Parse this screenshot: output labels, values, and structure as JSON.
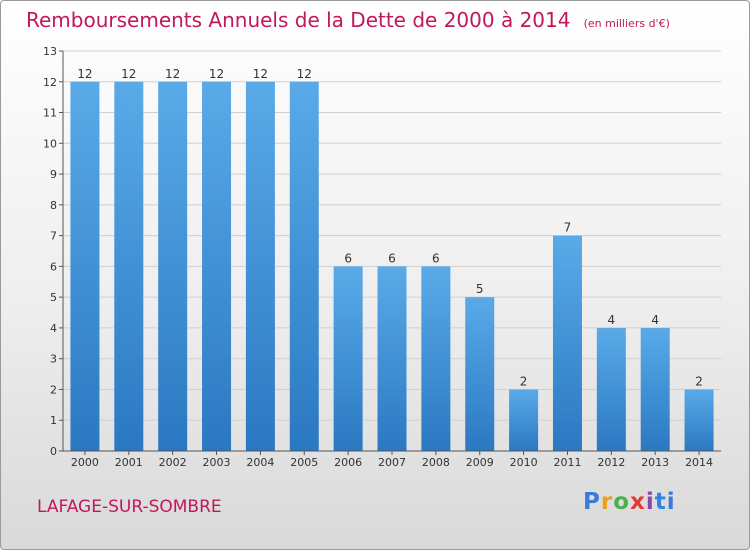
{
  "title": "Remboursements Annuels de la Dette de 2000 à 2014",
  "unit_note": "(en milliers d'€)",
  "city": "LAFAGE-SUR-SOMBRE",
  "logo": "Proxiti",
  "colors": {
    "title": "#c2185b",
    "bar_top": "#5aaae8",
    "bar_bottom": "#2b78c2"
  },
  "chart_data": {
    "type": "bar",
    "title": "Remboursements Annuels de la Dette de 2000 à 2014",
    "categories": [
      "2000",
      "2001",
      "2002",
      "2003",
      "2004",
      "2005",
      "2006",
      "2007",
      "2008",
      "2009",
      "2010",
      "2011",
      "2012",
      "2013",
      "2014"
    ],
    "values": [
      12,
      12,
      12,
      12,
      12,
      12,
      6,
      6,
      6,
      5,
      2,
      7,
      4,
      4,
      2
    ],
    "ylim": [
      0,
      13
    ],
    "yticks": [
      0,
      1,
      2,
      3,
      4,
      5,
      6,
      7,
      8,
      9,
      10,
      11,
      12,
      13
    ],
    "grid": true,
    "legend": "none"
  }
}
